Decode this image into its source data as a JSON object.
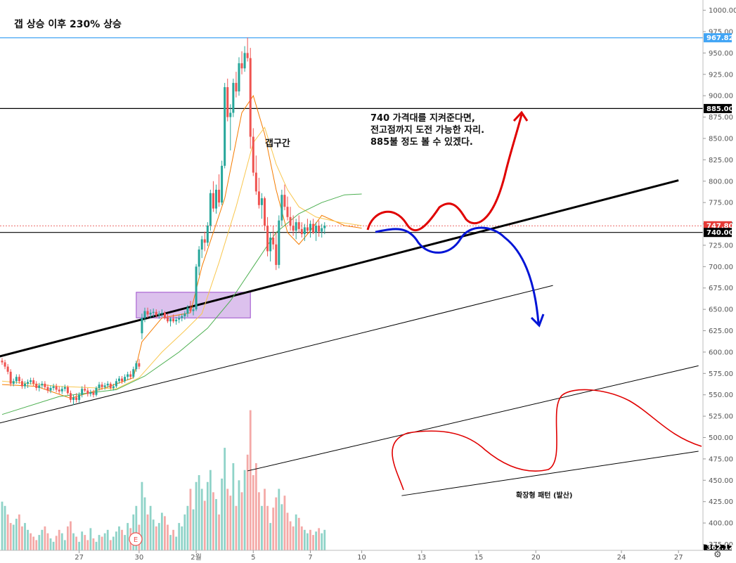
{
  "title": "갭 상승 이후 230% 상승",
  "annotations": {
    "main_line1": "740 가격대를 지켜준다면,",
    "main_line2": "전고점까지 도전 가능한 자리.",
    "main_line3": "885불 정도 볼 수 있겠다.",
    "gap": "갭구간",
    "pattern": "확장형 패턴 (발산)",
    "event_marker": "E"
  },
  "colors": {
    "up": "#26a69a",
    "down": "#ef5350",
    "ma_fast": "#f57c00",
    "ma_mid": "#f9c74f",
    "ma_slow": "#4caf50",
    "bull_path": "#e00000",
    "bear_path": "#0014d6",
    "gap_box": "#9c4dcc",
    "top_line": "#42a5f5"
  },
  "price_tags": {
    "top": "967.82",
    "resistance": "885.00",
    "current": "747.80",
    "support": "740.00",
    "bottom": "362.12"
  },
  "chart_data": {
    "type": "candlestick",
    "title": "갭 상승 이후 230% 상승",
    "y_axis": {
      "range": [
        368,
        1012
      ],
      "ticks": [
        1000,
        975,
        950,
        925,
        900,
        875,
        850,
        825,
        800,
        775,
        750,
        725,
        700,
        675,
        650,
        625,
        600,
        575,
        550,
        525,
        500,
        475,
        450,
        425,
        400,
        375
      ]
    },
    "x_axis": {
      "ticks": [
        {
          "label": "27",
          "idx": 27
        },
        {
          "label": "30",
          "idx": 48
        },
        {
          "label": "2월",
          "idx": 68
        },
        {
          "label": "5",
          "idx": 88
        },
        {
          "label": "7",
          "idx": 108
        },
        {
          "label": "10",
          "idx": 126
        },
        {
          "label": "13",
          "idx": 147
        },
        {
          "label": "15",
          "idx": 167
        },
        {
          "label": "20",
          "idx": 187
        },
        {
          "label": "24",
          "idx": 217
        },
        {
          "label": "27",
          "idx": 237
        }
      ]
    },
    "price_levels": {
      "top": 967.82,
      "resistance": 885,
      "current": 747.8,
      "support": 740,
      "bottom": 362.12
    },
    "candles": [
      [
        590,
        593,
        585,
        588
      ],
      [
        588,
        591,
        580,
        583
      ],
      [
        583,
        586,
        574,
        577
      ],
      [
        577,
        580,
        560,
        563
      ],
      [
        563,
        569,
        560,
        566
      ],
      [
        566,
        574,
        563,
        571
      ],
      [
        571,
        574,
        563,
        566
      ],
      [
        566,
        569,
        557,
        560
      ],
      [
        560,
        566,
        557,
        563
      ],
      [
        563,
        568,
        558,
        565
      ],
      [
        565,
        570,
        562,
        567
      ],
      [
        567,
        570,
        560,
        563
      ],
      [
        563,
        566,
        555,
        558
      ],
      [
        558,
        564,
        554,
        561
      ],
      [
        561,
        566,
        558,
        563
      ],
      [
        563,
        566,
        556,
        559
      ],
      [
        559,
        562,
        552,
        555
      ],
      [
        555,
        561,
        552,
        558
      ],
      [
        558,
        563,
        555,
        560
      ],
      [
        560,
        563,
        553,
        556
      ],
      [
        556,
        560,
        551,
        554
      ],
      [
        554,
        560,
        551,
        557
      ],
      [
        557,
        562,
        554,
        559
      ],
      [
        559,
        561,
        550,
        552
      ],
      [
        552,
        555,
        541,
        544
      ],
      [
        544,
        550,
        538,
        547
      ],
      [
        547,
        552,
        541,
        544
      ],
      [
        544,
        553,
        541,
        550
      ],
      [
        550,
        560,
        547,
        557
      ],
      [
        557,
        562,
        553,
        555
      ],
      [
        555,
        558,
        548,
        551
      ],
      [
        551,
        556,
        548,
        553
      ],
      [
        553,
        556,
        547,
        550
      ],
      [
        550,
        560,
        548,
        558
      ],
      [
        558,
        565,
        555,
        562
      ],
      [
        562,
        565,
        556,
        559
      ],
      [
        559,
        564,
        556,
        561
      ],
      [
        561,
        566,
        558,
        563
      ],
      [
        563,
        565,
        556,
        558
      ],
      [
        558,
        563,
        555,
        560
      ],
      [
        560,
        569,
        558,
        566
      ],
      [
        566,
        572,
        563,
        569
      ],
      [
        569,
        572,
        563,
        566
      ],
      [
        566,
        574,
        564,
        571
      ],
      [
        571,
        577,
        567,
        574
      ],
      [
        574,
        578,
        568,
        571
      ],
      [
        571,
        583,
        569,
        580
      ],
      [
        580,
        590,
        577,
        587
      ],
      [
        587,
        592,
        580,
        583
      ],
      [
        622,
        645,
        615,
        640
      ],
      [
        640,
        652,
        635,
        648
      ],
      [
        648,
        652,
        640,
        644
      ],
      [
        644,
        650,
        640,
        646
      ],
      [
        646,
        651,
        641,
        647
      ],
      [
        647,
        650,
        640,
        643
      ],
      [
        643,
        648,
        639,
        645
      ],
      [
        645,
        650,
        641,
        646
      ],
      [
        646,
        648,
        638,
        640
      ],
      [
        640,
        645,
        634,
        636
      ],
      [
        636,
        641,
        630,
        639
      ],
      [
        639,
        644,
        634,
        636
      ],
      [
        636,
        641,
        632,
        638
      ],
      [
        638,
        643,
        634,
        640
      ],
      [
        640,
        645,
        636,
        642
      ],
      [
        642,
        648,
        638,
        645
      ],
      [
        645,
        655,
        641,
        652
      ],
      [
        652,
        660,
        646,
        648
      ],
      [
        648,
        653,
        643,
        650
      ],
      [
        650,
        703,
        648,
        700
      ],
      [
        700,
        724,
        690,
        720
      ],
      [
        720,
        736,
        710,
        732
      ],
      [
        732,
        741,
        718,
        728
      ],
      [
        728,
        752,
        724,
        748
      ],
      [
        748,
        790,
        742,
        786
      ],
      [
        786,
        800,
        764,
        768
      ],
      [
        768,
        796,
        762,
        790
      ],
      [
        790,
        808,
        770,
        775
      ],
      [
        775,
        824,
        772,
        818
      ],
      [
        818,
        915,
        815,
        910
      ],
      [
        910,
        920,
        870,
        875
      ],
      [
        875,
        890,
        836,
        880
      ],
      [
        880,
        920,
        875,
        915
      ],
      [
        915,
        928,
        898,
        905
      ],
      [
        905,
        945,
        900,
        938
      ],
      [
        938,
        952,
        925,
        932
      ],
      [
        932,
        958,
        928,
        950
      ],
      [
        950,
        968,
        940,
        944
      ],
      [
        944,
        956,
        838,
        852
      ],
      [
        852,
        862,
        806,
        810
      ],
      [
        810,
        830,
        784,
        788
      ],
      [
        788,
        804,
        768,
        772
      ],
      [
        772,
        786,
        756,
        780
      ],
      [
        780,
        782,
        742,
        748
      ],
      [
        748,
        758,
        712,
        718
      ],
      [
        718,
        740,
        706,
        734
      ],
      [
        734,
        748,
        720,
        726
      ],
      [
        726,
        740,
        696,
        702
      ],
      [
        702,
        760,
        698,
        754
      ],
      [
        754,
        790,
        748,
        784
      ],
      [
        784,
        796,
        766,
        770
      ],
      [
        770,
        782,
        754,
        758
      ],
      [
        758,
        770,
        742,
        748
      ],
      [
        748,
        760,
        736,
        742
      ],
      [
        742,
        756,
        732,
        752
      ],
      [
        752,
        760,
        740,
        744
      ],
      [
        744,
        752,
        734,
        738
      ],
      [
        738,
        750,
        730,
        746
      ],
      [
        746,
        756,
        738,
        742
      ],
      [
        742,
        754,
        734,
        750
      ],
      [
        750,
        756,
        738,
        740
      ],
      [
        740,
        752,
        730,
        748
      ],
      [
        748,
        754,
        735,
        741
      ],
      [
        741,
        750,
        734,
        745
      ],
      [
        745,
        752,
        738,
        748
      ]
    ],
    "volumes": [
      [
        425,
        0
      ],
      [
        420,
        0
      ],
      [
        410,
        1
      ],
      [
        400,
        1
      ],
      [
        398,
        0
      ],
      [
        405,
        0
      ],
      [
        410,
        1
      ],
      [
        396,
        1
      ],
      [
        400,
        0
      ],
      [
        392,
        0
      ],
      [
        388,
        1
      ],
      [
        384,
        1
      ],
      [
        380,
        1
      ],
      [
        386,
        0
      ],
      [
        392,
        0
      ],
      [
        396,
        1
      ],
      [
        388,
        1
      ],
      [
        382,
        0
      ],
      [
        378,
        0
      ],
      [
        385,
        1
      ],
      [
        392,
        1
      ],
      [
        388,
        0
      ],
      [
        380,
        0
      ],
      [
        396,
        1
      ],
      [
        402,
        1
      ],
      [
        388,
        0
      ],
      [
        384,
        1
      ],
      [
        378,
        0
      ],
      [
        390,
        0
      ],
      [
        386,
        1
      ],
      [
        380,
        1
      ],
      [
        394,
        0
      ],
      [
        382,
        1
      ],
      [
        378,
        0
      ],
      [
        386,
        0
      ],
      [
        384,
        1
      ],
      [
        388,
        0
      ],
      [
        392,
        0
      ],
      [
        380,
        1
      ],
      [
        384,
        0
      ],
      [
        390,
        0
      ],
      [
        396,
        0
      ],
      [
        392,
        1
      ],
      [
        386,
        0
      ],
      [
        400,
        0
      ],
      [
        394,
        1
      ],
      [
        410,
        0
      ],
      [
        420,
        0
      ],
      [
        398,
        1
      ],
      [
        448,
        0
      ],
      [
        430,
        0
      ],
      [
        410,
        1
      ],
      [
        420,
        0
      ],
      [
        404,
        0
      ],
      [
        396,
        1
      ],
      [
        400,
        0
      ],
      [
        412,
        0
      ],
      [
        408,
        1
      ],
      [
        398,
        1
      ],
      [
        386,
        0
      ],
      [
        392,
        1
      ],
      [
        384,
        0
      ],
      [
        400,
        0
      ],
      [
        396,
        0
      ],
      [
        410,
        0
      ],
      [
        420,
        0
      ],
      [
        440,
        1
      ],
      [
        416,
        0
      ],
      [
        448,
        0
      ],
      [
        456,
        0
      ],
      [
        440,
        0
      ],
      [
        426,
        1
      ],
      [
        448,
        0
      ],
      [
        462,
        0
      ],
      [
        436,
        1
      ],
      [
        428,
        0
      ],
      [
        410,
        1
      ],
      [
        452,
        0
      ],
      [
        488,
        0
      ],
      [
        440,
        1
      ],
      [
        432,
        1
      ],
      [
        470,
        0
      ],
      [
        420,
        1
      ],
      [
        450,
        0
      ],
      [
        436,
        1
      ],
      [
        462,
        0
      ],
      [
        480,
        1
      ],
      [
        532,
        1
      ],
      [
        456,
        1
      ],
      [
        470,
        1
      ],
      [
        436,
        1
      ],
      [
        420,
        0
      ],
      [
        440,
        1
      ],
      [
        420,
        1
      ],
      [
        400,
        0
      ],
      [
        418,
        1
      ],
      [
        430,
        1
      ],
      [
        440,
        0
      ],
      [
        422,
        0
      ],
      [
        432,
        1
      ],
      [
        412,
        1
      ],
      [
        402,
        1
      ],
      [
        396,
        1
      ],
      [
        410,
        0
      ],
      [
        406,
        1
      ],
      [
        396,
        1
      ],
      [
        392,
        0
      ],
      [
        388,
        0
      ],
      [
        392,
        1
      ],
      [
        386,
        1
      ],
      [
        390,
        0
      ],
      [
        394,
        1
      ],
      [
        388,
        0
      ],
      [
        392,
        0
      ]
    ],
    "moving_averages": {
      "fast": [
        [
          0,
          562
        ],
        [
          12,
          560
        ],
        [
          24,
          546
        ],
        [
          36,
          558
        ],
        [
          46,
          570
        ],
        [
          49,
          612
        ],
        [
          56,
          640
        ],
        [
          66,
          646
        ],
        [
          70,
          700
        ],
        [
          78,
          780
        ],
        [
          84,
          880
        ],
        [
          88,
          900
        ],
        [
          92,
          855
        ],
        [
          96,
          790
        ],
        [
          100,
          740
        ],
        [
          104,
          726
        ],
        [
          108,
          742
        ],
        [
          112,
          760
        ],
        [
          120,
          748
        ],
        [
          126,
          745
        ]
      ],
      "mid": [
        [
          0,
          566
        ],
        [
          20,
          560
        ],
        [
          40,
          557
        ],
        [
          48,
          570
        ],
        [
          56,
          600
        ],
        [
          64,
          625
        ],
        [
          70,
          645
        ],
        [
          76,
          705
        ],
        [
          82,
          770
        ],
        [
          88,
          845
        ],
        [
          92,
          863
        ],
        [
          96,
          820
        ],
        [
          100,
          790
        ],
        [
          104,
          770
        ],
        [
          110,
          758
        ],
        [
          118,
          752
        ],
        [
          126,
          748
        ]
      ],
      "slow": [
        [
          0,
          527
        ],
        [
          20,
          548
        ],
        [
          40,
          556
        ],
        [
          50,
          572
        ],
        [
          62,
          600
        ],
        [
          72,
          628
        ],
        [
          80,
          660
        ],
        [
          88,
          700
        ],
        [
          96,
          740
        ],
        [
          104,
          762
        ],
        [
          112,
          775
        ],
        [
          120,
          784
        ],
        [
          126,
          785
        ]
      ]
    },
    "trendlines": [
      {
        "role": "main-support",
        "from": [
          -2,
          594
        ],
        "to": [
          237,
          801
        ],
        "bold": true
      },
      {
        "role": "lower-parallel",
        "from": [
          -2,
          516
        ],
        "to": [
          193,
          678
        ],
        "bold": false
      },
      {
        "role": "expanding-upper",
        "from": [
          86,
          461
        ],
        "to": [
          244,
          584
        ],
        "bold": false
      },
      {
        "role": "expanding-lower",
        "from": [
          140,
          432
        ],
        "to": [
          244,
          484
        ],
        "bold": false
      }
    ],
    "horizontal_lines": [
      {
        "value": 967.82,
        "color": "#42a5f5"
      },
      {
        "value": 885,
        "color": "#000000"
      },
      {
        "value": 740,
        "color": "#000000"
      },
      {
        "value": 747.8,
        "color": "#e53935",
        "dashed": true
      }
    ],
    "gap_zone": {
      "idx_from": 47,
      "idx_to": 87,
      "price_from": 640,
      "price_to": 670
    }
  }
}
